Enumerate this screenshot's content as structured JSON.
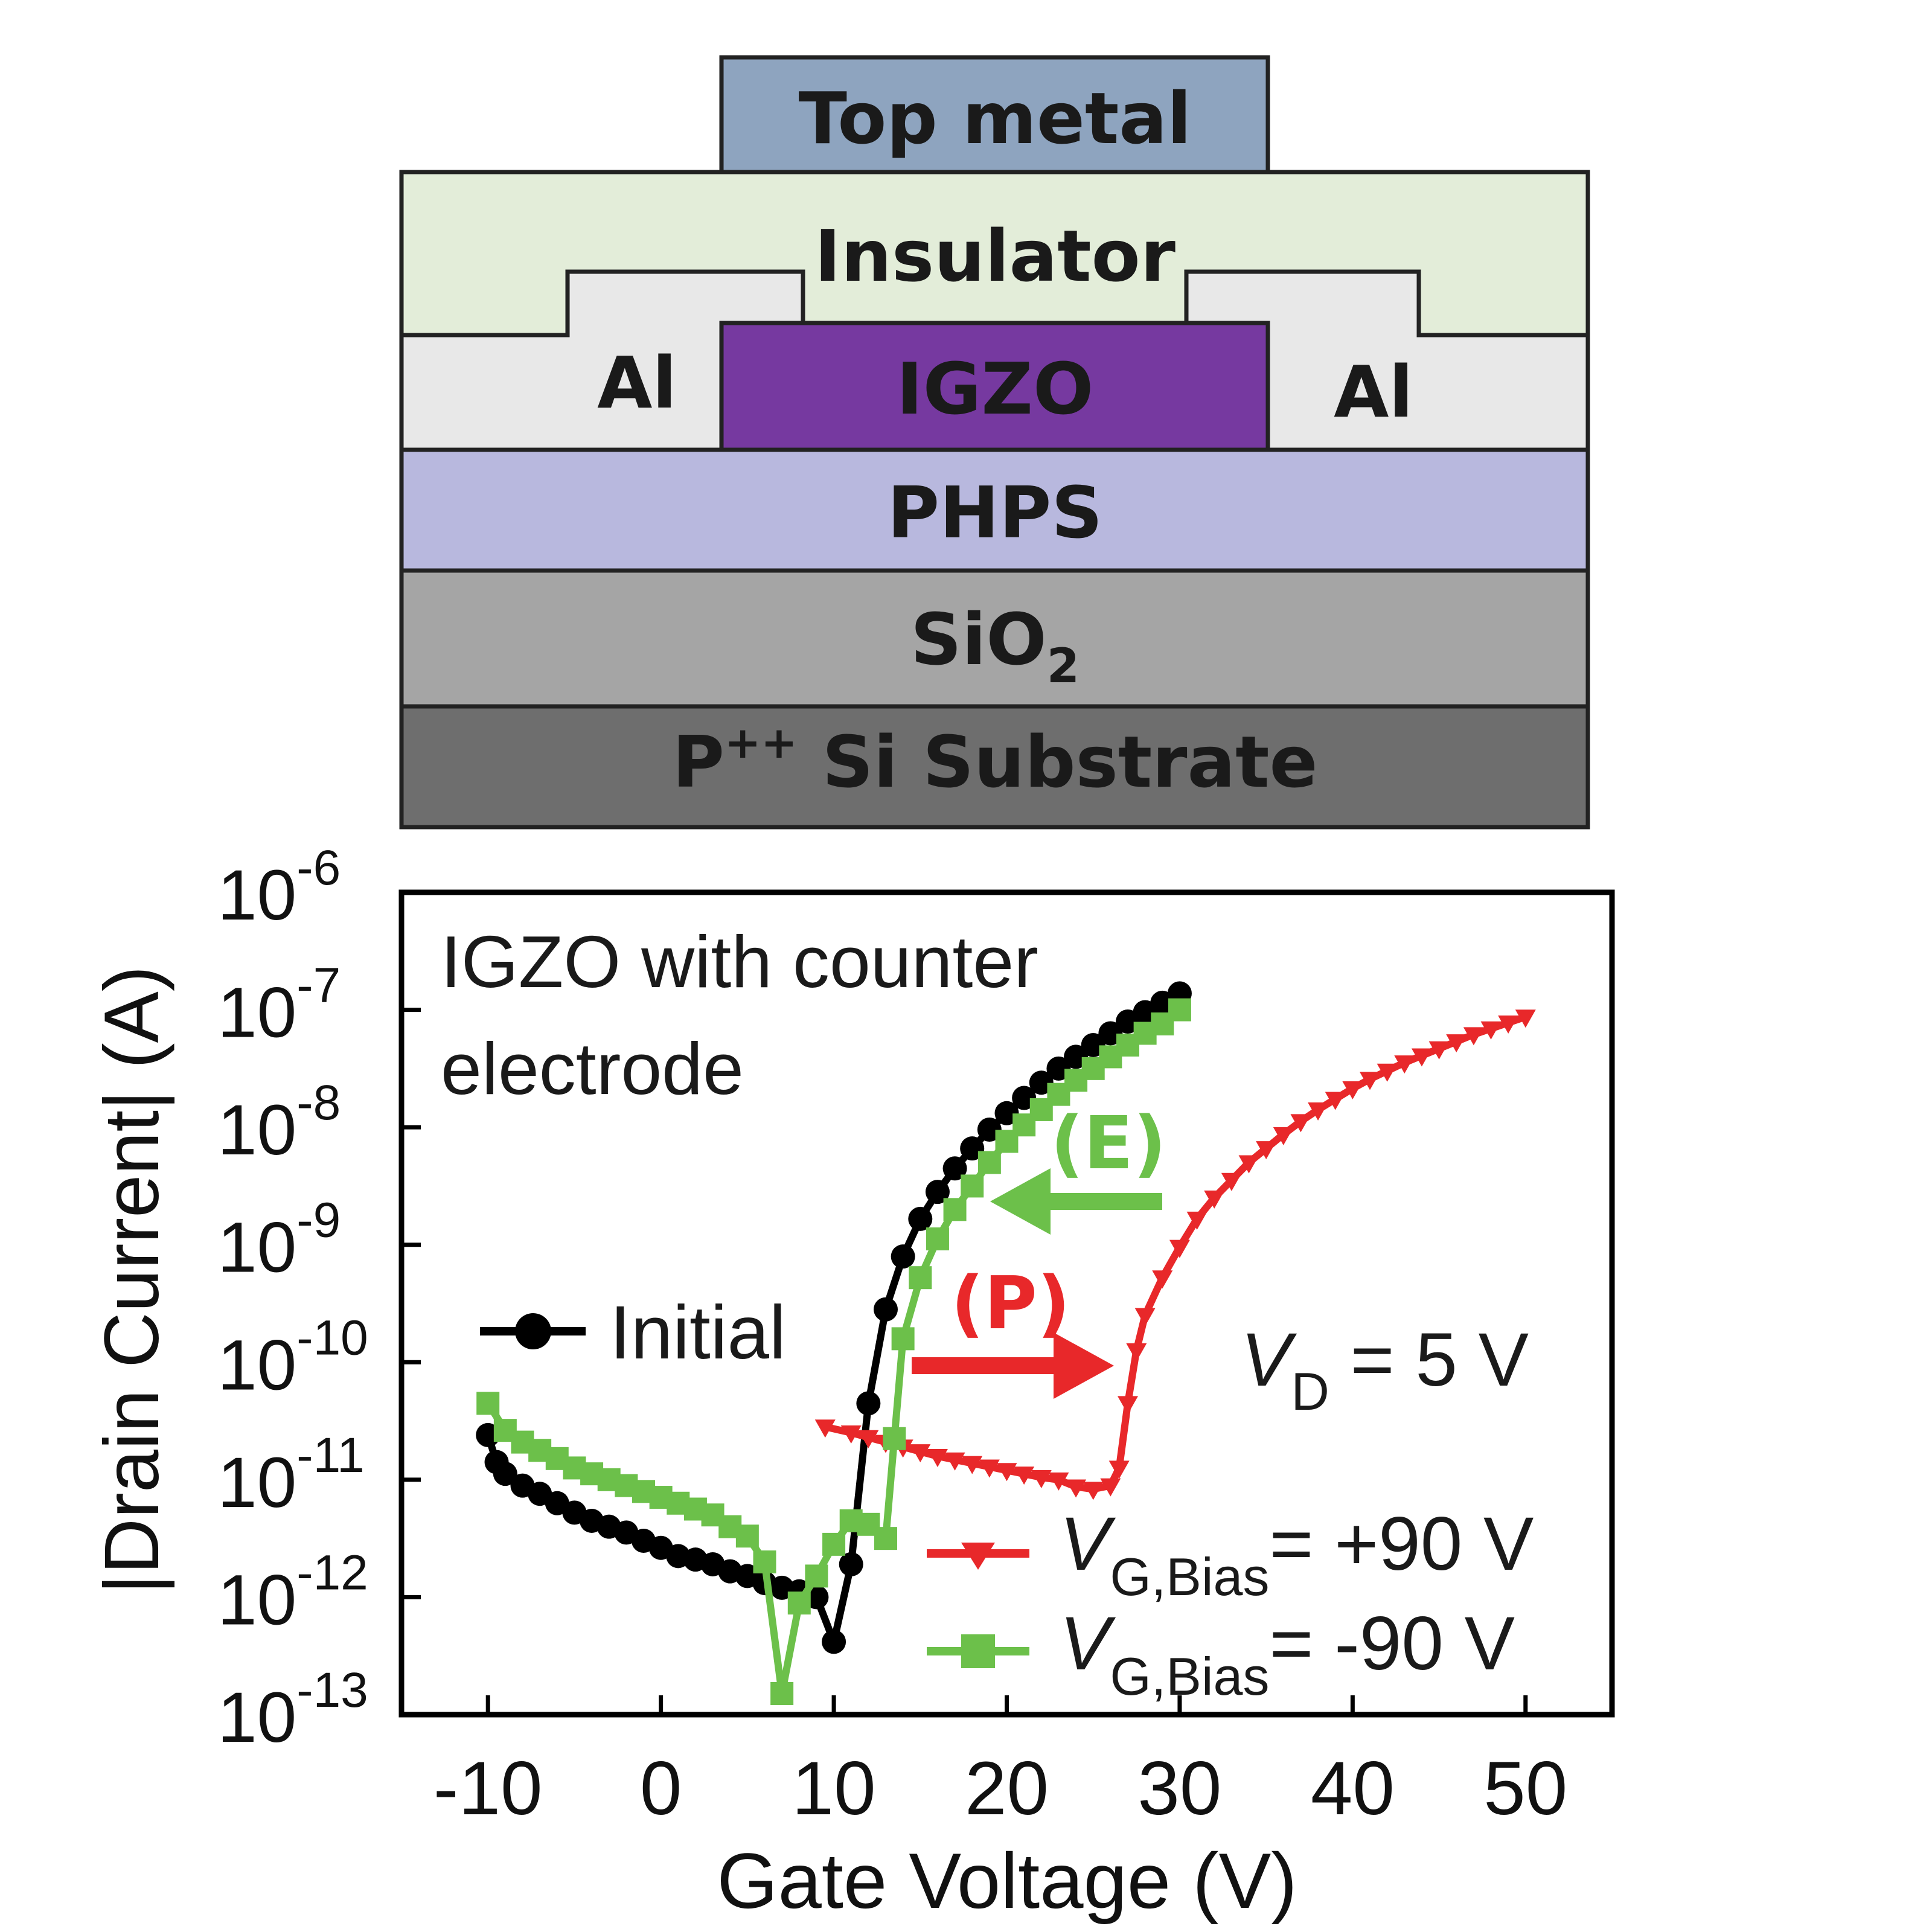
{
  "diagram": {
    "layers": {
      "top_metal": "Top metal",
      "insulator": "Insulator",
      "al_left": "Al",
      "igzo": "IGZO",
      "al_right": "Al",
      "phps": "PHPS",
      "sio2_base": "SiO",
      "sio2_sub": "2",
      "substrate_base": "P",
      "substrate_sup": "++",
      "substrate_rest": " Si Substrate"
    },
    "colors": {
      "top_metal": "#8EA4BF",
      "insulator": "#E3EDD9",
      "al": "#E8E8E8",
      "igzo": "#7639A0",
      "phps": "#B8B8DE",
      "sio2": "#A5A5A5",
      "substrate": "#6E6E6E"
    }
  },
  "chart_data": {
    "type": "line",
    "title": "",
    "xlabel": "Gate Voltage (V)",
    "ylabel": "|Drain Current| (A)",
    "xlim": [
      -15,
      55
    ],
    "ylim": [
      -13,
      -6
    ],
    "y_scale": "log10",
    "x_ticks": [
      -10,
      0,
      10,
      20,
      30,
      40,
      50
    ],
    "y_ticks": [
      {
        "exp": -6,
        "base": "10",
        "sup": "-6"
      },
      {
        "exp": -7,
        "base": "10",
        "sup": "-7"
      },
      {
        "exp": -8,
        "base": "10",
        "sup": "-8"
      },
      {
        "exp": -9,
        "base": "10",
        "sup": "-9"
      },
      {
        "exp": -10,
        "base": "10",
        "sup": "-10"
      },
      {
        "exp": -11,
        "base": "10",
        "sup": "-11"
      },
      {
        "exp": -12,
        "base": "10",
        "sup": "-12"
      },
      {
        "exp": -13,
        "base": "10",
        "sup": "-13"
      }
    ],
    "annotations": {
      "panel_title_line1": "IGZO with counter",
      "panel_title_line2": "electrode",
      "erase_label": "(E)",
      "program_label": "(P)",
      "vd_italic": "V",
      "vd_sub": "D",
      "vd_rest": " = 5 V"
    },
    "series": [
      {
        "name": "Initial",
        "label": "Initial",
        "color": "#000000",
        "marker": "circle",
        "points": [
          [
            -10,
            -10.62
          ],
          [
            -9.5,
            -10.85
          ],
          [
            -9,
            -10.95
          ],
          [
            -8,
            -11.05
          ],
          [
            -7,
            -11.12
          ],
          [
            -6,
            -11.2
          ],
          [
            -5,
            -11.28
          ],
          [
            -4,
            -11.35
          ],
          [
            -3,
            -11.4
          ],
          [
            -2,
            -11.45
          ],
          [
            -1,
            -11.52
          ],
          [
            0,
            -11.58
          ],
          [
            1,
            -11.65
          ],
          [
            2,
            -11.68
          ],
          [
            3,
            -11.72
          ],
          [
            4,
            -11.78
          ],
          [
            5,
            -11.82
          ],
          [
            6,
            -11.88
          ],
          [
            7,
            -11.92
          ],
          [
            8,
            -11.95
          ],
          [
            9,
            -12.0
          ],
          [
            10,
            -12.38
          ],
          [
            11,
            -11.72
          ],
          [
            12,
            -10.35
          ],
          [
            13,
            -9.55
          ],
          [
            14,
            -9.1
          ],
          [
            15,
            -8.78
          ],
          [
            16,
            -8.55
          ],
          [
            17,
            -8.35
          ],
          [
            18,
            -8.18
          ],
          [
            19,
            -8.02
          ],
          [
            20,
            -7.88
          ],
          [
            21,
            -7.75
          ],
          [
            22,
            -7.62
          ],
          [
            23,
            -7.5
          ],
          [
            24,
            -7.4
          ],
          [
            25,
            -7.3
          ],
          [
            26,
            -7.2
          ],
          [
            27,
            -7.1
          ],
          [
            28,
            -7.02
          ],
          [
            29,
            -6.94
          ],
          [
            30,
            -6.86
          ]
        ]
      },
      {
        "name": "V_G,Bias = +90 V",
        "label_italic": "V",
        "label_sub": "G,Bias",
        "label_rest": "= +90 V",
        "color": "#E8282A",
        "marker": "triangle-down",
        "points": [
          [
            9.5,
            -10.55
          ],
          [
            11,
            -10.6
          ],
          [
            12,
            -10.64
          ],
          [
            13,
            -10.68
          ],
          [
            14,
            -10.72
          ],
          [
            15,
            -10.76
          ],
          [
            16,
            -10.8
          ],
          [
            17,
            -10.83
          ],
          [
            18,
            -10.86
          ],
          [
            19,
            -10.89
          ],
          [
            20,
            -10.92
          ],
          [
            21,
            -10.95
          ],
          [
            22,
            -10.98
          ],
          [
            23,
            -11.0
          ],
          [
            24,
            -11.06
          ],
          [
            25,
            -11.08
          ],
          [
            26,
            -11.05
          ],
          [
            26.5,
            -10.9
          ],
          [
            27,
            -10.35
          ],
          [
            27.5,
            -9.9
          ],
          [
            28,
            -9.6
          ],
          [
            29,
            -9.28
          ],
          [
            30,
            -9.02
          ],
          [
            31,
            -8.78
          ],
          [
            32,
            -8.6
          ],
          [
            33,
            -8.45
          ],
          [
            34,
            -8.3
          ],
          [
            35,
            -8.18
          ],
          [
            36,
            -8.06
          ],
          [
            37,
            -7.95
          ],
          [
            38,
            -7.85
          ],
          [
            39,
            -7.76
          ],
          [
            40,
            -7.67
          ],
          [
            41,
            -7.59
          ],
          [
            42,
            -7.52
          ],
          [
            43,
            -7.45
          ],
          [
            44,
            -7.39
          ],
          [
            45,
            -7.33
          ],
          [
            46,
            -7.27
          ],
          [
            47,
            -7.21
          ],
          [
            48,
            -7.16
          ],
          [
            49,
            -7.11
          ],
          [
            50,
            -7.06
          ]
        ]
      },
      {
        "name": "V_G,Bias = -90 V",
        "label_italic": "V",
        "label_sub": "G,Bias",
        "label_rest": "= -90 V",
        "color": "#6CC04A",
        "marker": "square",
        "points": [
          [
            -10,
            -10.35
          ],
          [
            -9,
            -10.58
          ],
          [
            -8,
            -10.68
          ],
          [
            -7,
            -10.75
          ],
          [
            -6,
            -10.82
          ],
          [
            -5,
            -10.9
          ],
          [
            -4,
            -10.95
          ],
          [
            -3,
            -11.0
          ],
          [
            -2,
            -11.05
          ],
          [
            -1,
            -11.1
          ],
          [
            0,
            -11.15
          ],
          [
            1,
            -11.2
          ],
          [
            2,
            -11.25
          ],
          [
            3,
            -11.3
          ],
          [
            4,
            -11.4
          ],
          [
            5,
            -11.48
          ],
          [
            6,
            -11.7
          ],
          [
            7,
            -12.82
          ],
          [
            8,
            -12.05
          ],
          [
            9,
            -11.82
          ],
          [
            10,
            -11.55
          ],
          [
            11,
            -11.35
          ],
          [
            12,
            -11.38
          ],
          [
            13,
            -11.5
          ],
          [
            13.5,
            -10.65
          ],
          [
            14,
            -9.8
          ],
          [
            15,
            -9.28
          ],
          [
            16,
            -8.95
          ],
          [
            17,
            -8.7
          ],
          [
            18,
            -8.5
          ],
          [
            19,
            -8.3
          ],
          [
            20,
            -8.12
          ],
          [
            21,
            -7.98
          ],
          [
            22,
            -7.85
          ],
          [
            23,
            -7.72
          ],
          [
            24,
            -7.6
          ],
          [
            25,
            -7.5
          ],
          [
            26,
            -7.4
          ],
          [
            27,
            -7.3
          ],
          [
            28,
            -7.2
          ],
          [
            29,
            -7.12
          ],
          [
            30,
            -7.0
          ]
        ]
      }
    ]
  }
}
